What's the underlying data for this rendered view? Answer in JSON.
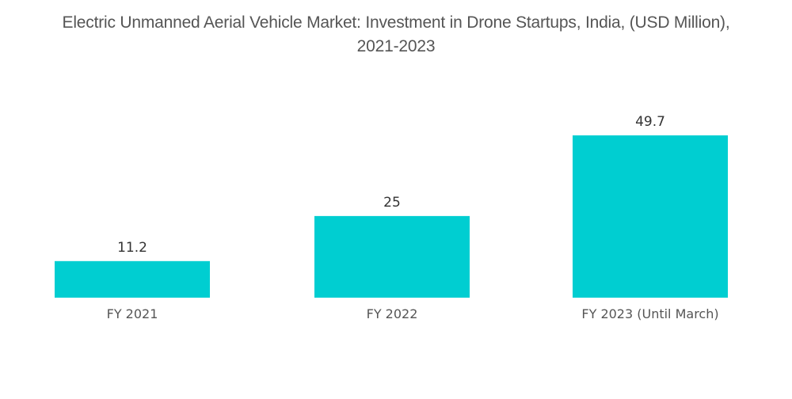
{
  "chart_data": {
    "type": "bar",
    "title": "Electric Unmanned Aerial Vehicle Market: Investment in Drone Startups, India, (USD Million), 2021-2023",
    "title_lines": [
      "Electric Unmanned Aerial Vehicle Market: Investment in Drone Startups, India, (USD Million),",
      "2021-2023"
    ],
    "categories": [
      "FY 2021",
      "FY 2022",
      "FY 2023 (Until March)"
    ],
    "values": [
      11.2,
      25,
      49.7
    ],
    "value_labels": [
      "11.2",
      "25",
      "49.7"
    ],
    "xlabel": "",
    "ylabel": "",
    "ylim": [
      0,
      49.7
    ],
    "grid": false,
    "legend": "none",
    "bar_color": "#00CED1"
  }
}
